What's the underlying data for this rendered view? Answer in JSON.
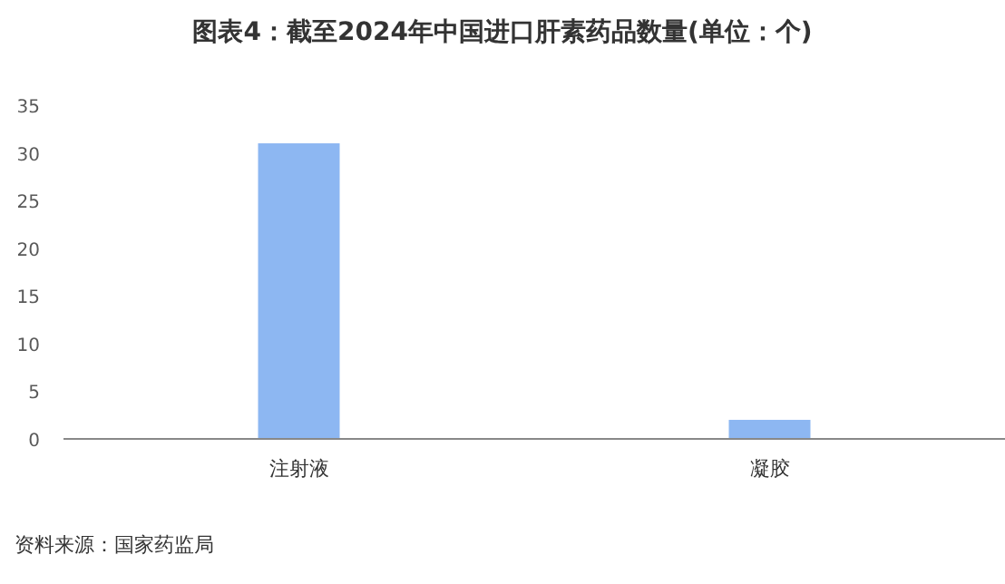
{
  "chart_data": {
    "type": "bar",
    "title": "图表4：截至2024年中国进口肝素药品数量(单位：个)",
    "categories": [
      "注射液",
      "凝胶"
    ],
    "values": [
      31,
      2
    ],
    "color": "#8db7f2",
    "ylim": [
      0,
      35
    ],
    "yticks": [
      0,
      5,
      10,
      15,
      20,
      25,
      30,
      35
    ],
    "grid": false,
    "annotations": [
      "资料来源：国家药监局"
    ]
  }
}
